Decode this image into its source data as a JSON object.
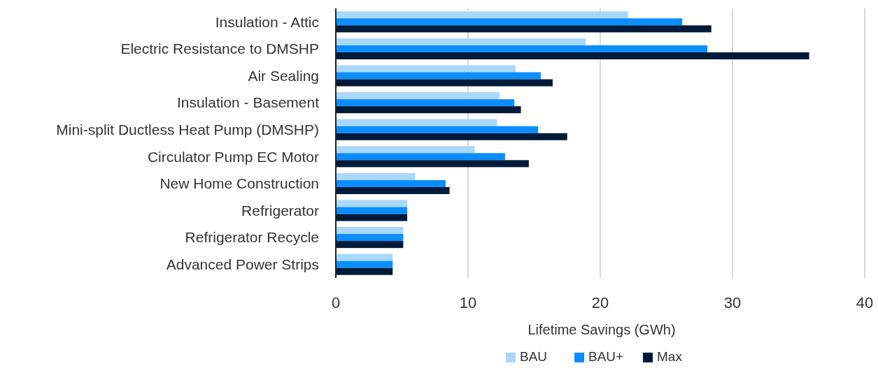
{
  "chart_data": {
    "type": "bar",
    "orientation": "horizontal",
    "xlabel": "Lifetime Savings (GWh)",
    "categories": [
      "Insulation - Attic",
      "Electric Resistance to DMSHP",
      "Air Sealing",
      "Insulation - Basement",
      "Mini-split Ductless Heat Pump (DMSHP)",
      "Circulator Pump EC Motor",
      "New Home Construction",
      "Refrigerator",
      "Refrigerator Recycle",
      "Advanced Power Strips"
    ],
    "series": [
      {
        "name": "BAU",
        "color": "#a9d8fc",
        "values": [
          22.1,
          18.9,
          13.6,
          12.4,
          12.2,
          10.5,
          6.0,
          5.4,
          5.1,
          4.3
        ]
      },
      {
        "name": "BAU+",
        "color": "#0a8dff",
        "values": [
          26.2,
          28.1,
          15.5,
          13.5,
          15.3,
          12.8,
          8.3,
          5.4,
          5.1,
          4.3
        ]
      },
      {
        "name": "Max",
        "color": "#021a3a",
        "values": [
          28.4,
          35.8,
          16.4,
          14.0,
          17.5,
          14.6,
          8.6,
          5.4,
          5.1,
          4.3
        ]
      }
    ],
    "xlim": [
      0,
      40
    ],
    "xticks": [
      0,
      10,
      20,
      30,
      40
    ],
    "grid": "x",
    "legend": "bottom"
  }
}
